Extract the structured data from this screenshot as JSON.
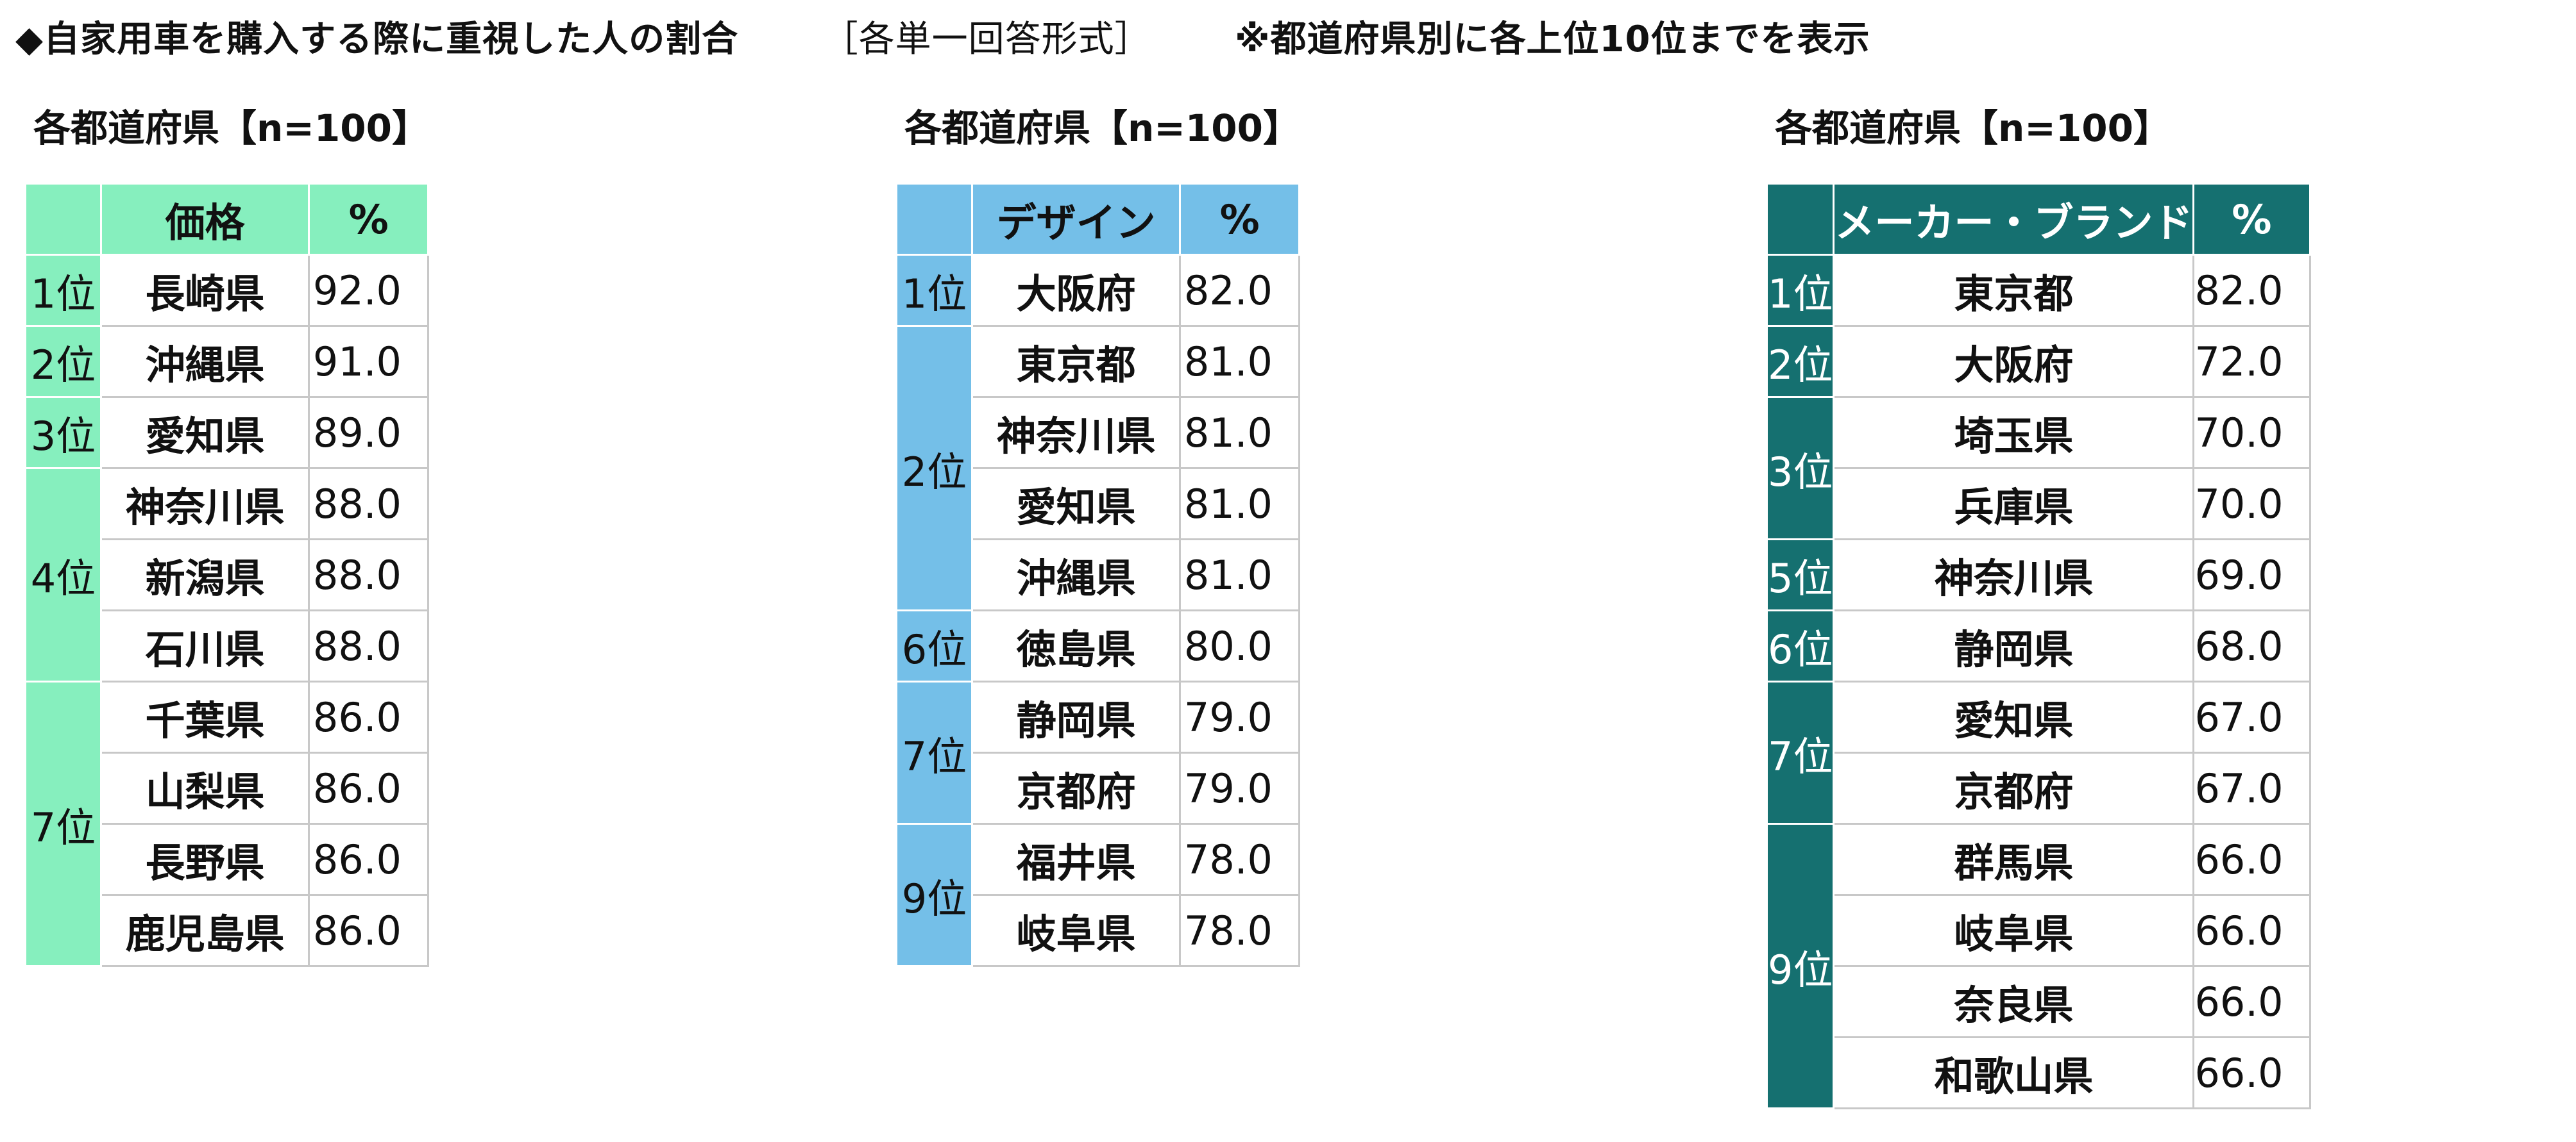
{
  "header": {
    "title": "◆自家用車を購入する際に重視した人の割合",
    "format": "［各単一回答形式］",
    "note": "※都道府県別に各上位10位までを表示"
  },
  "panels": [
    {
      "title": "各都道府県【n=100】",
      "col_label": "価格",
      "pct_label": "%",
      "rows": [
        {
          "rank": "1位",
          "span": 1,
          "pref": "長崎県",
          "val": "92.0"
        },
        {
          "rank": "2位",
          "span": 1,
          "pref": "沖縄県",
          "val": "91.0"
        },
        {
          "rank": "3位",
          "span": 1,
          "pref": "愛知県",
          "val": "89.0"
        },
        {
          "rank": "4位",
          "span": 3,
          "pref": "神奈川県",
          "val": "88.0"
        },
        {
          "rank": "",
          "span": 0,
          "pref": "新潟県",
          "val": "88.0"
        },
        {
          "rank": "",
          "span": 0,
          "pref": "石川県",
          "val": "88.0"
        },
        {
          "rank": "7位",
          "span": 4,
          "pref": "千葉県",
          "val": "86.0"
        },
        {
          "rank": "",
          "span": 0,
          "pref": "山梨県",
          "val": "86.0"
        },
        {
          "rank": "",
          "span": 0,
          "pref": "長野県",
          "val": "86.0"
        },
        {
          "rank": "",
          "span": 0,
          "pref": "鹿児島県",
          "val": "86.0"
        }
      ]
    },
    {
      "title": "各都道府県【n=100】",
      "col_label": "デザイン",
      "pct_label": "%",
      "rows": [
        {
          "rank": "1位",
          "span": 1,
          "pref": "大阪府",
          "val": "82.0"
        },
        {
          "rank": "2位",
          "span": 4,
          "pref": "東京都",
          "val": "81.0"
        },
        {
          "rank": "",
          "span": 0,
          "pref": "神奈川県",
          "val": "81.0"
        },
        {
          "rank": "",
          "span": 0,
          "pref": "愛知県",
          "val": "81.0"
        },
        {
          "rank": "",
          "span": 0,
          "pref": "沖縄県",
          "val": "81.0"
        },
        {
          "rank": "6位",
          "span": 1,
          "pref": "徳島県",
          "val": "80.0"
        },
        {
          "rank": "7位",
          "span": 2,
          "pref": "静岡県",
          "val": "79.0"
        },
        {
          "rank": "",
          "span": 0,
          "pref": "京都府",
          "val": "79.0"
        },
        {
          "rank": "9位",
          "span": 2,
          "pref": "福井県",
          "val": "78.0"
        },
        {
          "rank": "",
          "span": 0,
          "pref": "岐阜県",
          "val": "78.0"
        }
      ]
    },
    {
      "title": "各都道府県【n=100】",
      "col_label": "メーカー・ブランド",
      "pct_label": "%",
      "rows": [
        {
          "rank": "1位",
          "span": 1,
          "pref": "東京都",
          "val": "82.0"
        },
        {
          "rank": "2位",
          "span": 1,
          "pref": "大阪府",
          "val": "72.0"
        },
        {
          "rank": "3位",
          "span": 2,
          "pref": "埼玉県",
          "val": "70.0"
        },
        {
          "rank": "",
          "span": 0,
          "pref": "兵庫県",
          "val": "70.0"
        },
        {
          "rank": "5位",
          "span": 1,
          "pref": "神奈川県",
          "val": "69.0"
        },
        {
          "rank": "6位",
          "span": 1,
          "pref": "静岡県",
          "val": "68.0"
        },
        {
          "rank": "7位",
          "span": 2,
          "pref": "愛知県",
          "val": "67.0"
        },
        {
          "rank": "",
          "span": 0,
          "pref": "京都府",
          "val": "67.0"
        },
        {
          "rank": "9位",
          "span": 4,
          "pref": "群馬県",
          "val": "66.0"
        },
        {
          "rank": "",
          "span": 0,
          "pref": "岐阜県",
          "val": "66.0"
        },
        {
          "rank": "",
          "span": 0,
          "pref": "奈良県",
          "val": "66.0"
        },
        {
          "rank": "",
          "span": 0,
          "pref": "和歌山県",
          "val": "66.0"
        }
      ]
    }
  ],
  "colors": {
    "price": "#86efbe",
    "design": "#74bfe8",
    "brand": "#157070"
  }
}
